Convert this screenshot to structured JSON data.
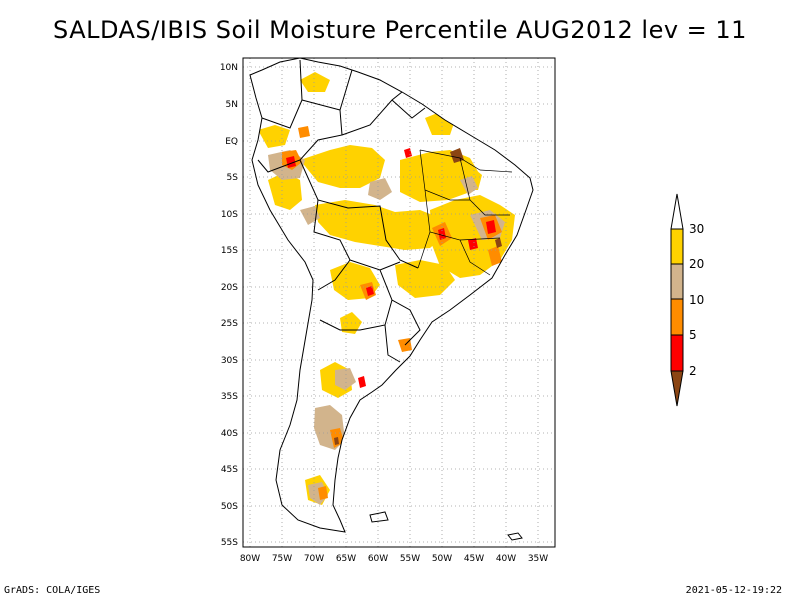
{
  "title": "SALDAS/IBIS Soil Moisture Percentile AUG2012 lev = 11",
  "footer": {
    "left": "GrADS: COLA/IGES",
    "right": "2021-05-12-19:22"
  },
  "map": {
    "lon_range": [
      -80,
      -32
    ],
    "lat_range": [
      -56,
      11
    ],
    "lat_ticks": [
      "10N",
      "5N",
      "EQ",
      "5S",
      "10S",
      "15S",
      "20S",
      "25S",
      "30S",
      "35S",
      "40S",
      "45S",
      "50S",
      "55S"
    ],
    "lon_ticks": [
      "80W",
      "75W",
      "70W",
      "65W",
      "60W",
      "55W",
      "50W",
      "45W",
      "40W",
      "35W"
    ],
    "grid": "dotted"
  },
  "legend": {
    "labels": [
      "30",
      "20",
      "10",
      "5",
      "2"
    ],
    "colors": {
      "above_30": "#ffffff",
      "20_30": "#ffd200",
      "10_20": "#d2b48c",
      "5_10": "#ff8c00",
      "2_5": "#ff0000",
      "below_2": "#8b4513"
    }
  }
}
